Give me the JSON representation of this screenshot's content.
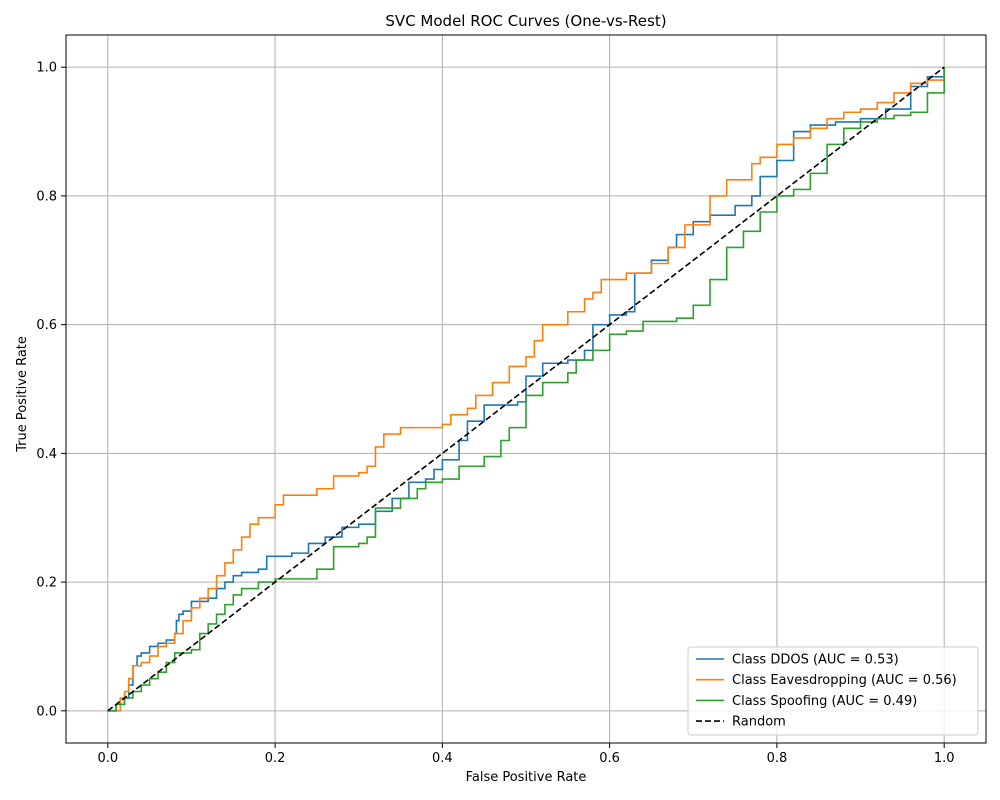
{
  "chart_data": {
    "type": "line",
    "title": "SVC Model ROC Curves (One-vs-Rest)",
    "xlabel": "False Positive Rate",
    "ylabel": "True Positive Rate",
    "xlim": [
      -0.05,
      1.05
    ],
    "ylim": [
      -0.05,
      1.05
    ],
    "xticks": [
      0.0,
      0.2,
      0.4,
      0.6,
      0.8,
      1.0
    ],
    "yticks": [
      0.0,
      0.2,
      0.4,
      0.6,
      0.8,
      1.0
    ],
    "xtick_labels": [
      "0.0",
      "0.2",
      "0.4",
      "0.6",
      "0.8",
      "1.0"
    ],
    "ytick_labels": [
      "0.0",
      "0.2",
      "0.4",
      "0.6",
      "0.8",
      "1.0"
    ],
    "grid": true,
    "legend_position": "lower-right",
    "series": [
      {
        "name": "Class DDOS (AUC = 0.53)",
        "color": "#1f77b4",
        "dash": "solid",
        "x": [
          0.0,
          0.01,
          0.02,
          0.025,
          0.03,
          0.035,
          0.04,
          0.05,
          0.06,
          0.07,
          0.08,
          0.082,
          0.085,
          0.09,
          0.1,
          0.12,
          0.13,
          0.14,
          0.15,
          0.16,
          0.18,
          0.19,
          0.22,
          0.24,
          0.26,
          0.28,
          0.3,
          0.32,
          0.34,
          0.36,
          0.38,
          0.39,
          0.4,
          0.42,
          0.43,
          0.45,
          0.49,
          0.5,
          0.52,
          0.55,
          0.57,
          0.58,
          0.6,
          0.62,
          0.63,
          0.65,
          0.67,
          0.68,
          0.7,
          0.72,
          0.75,
          0.77,
          0.78,
          0.8,
          0.82,
          0.84,
          0.87,
          0.9,
          0.93,
          0.96,
          0.98,
          1.0
        ],
        "y": [
          0.0,
          0.01,
          0.02,
          0.04,
          0.07,
          0.085,
          0.09,
          0.1,
          0.105,
          0.11,
          0.12,
          0.14,
          0.15,
          0.155,
          0.17,
          0.175,
          0.19,
          0.2,
          0.21,
          0.215,
          0.22,
          0.24,
          0.245,
          0.26,
          0.27,
          0.285,
          0.29,
          0.31,
          0.33,
          0.355,
          0.36,
          0.375,
          0.39,
          0.42,
          0.45,
          0.475,
          0.48,
          0.52,
          0.54,
          0.545,
          0.56,
          0.6,
          0.615,
          0.62,
          0.68,
          0.7,
          0.72,
          0.74,
          0.76,
          0.77,
          0.785,
          0.8,
          0.83,
          0.855,
          0.9,
          0.91,
          0.915,
          0.92,
          0.935,
          0.97,
          0.985,
          1.0
        ]
      },
      {
        "name": "Class Eavesdropping (AUC = 0.56)",
        "color": "#ff7f0e",
        "dash": "solid",
        "x": [
          0.0,
          0.01,
          0.015,
          0.02,
          0.025,
          0.03,
          0.04,
          0.05,
          0.06,
          0.07,
          0.08,
          0.09,
          0.1,
          0.11,
          0.12,
          0.13,
          0.14,
          0.15,
          0.16,
          0.17,
          0.18,
          0.2,
          0.21,
          0.25,
          0.27,
          0.3,
          0.31,
          0.32,
          0.33,
          0.35,
          0.4,
          0.41,
          0.43,
          0.44,
          0.46,
          0.48,
          0.5,
          0.51,
          0.52,
          0.55,
          0.57,
          0.58,
          0.59,
          0.62,
          0.65,
          0.67,
          0.69,
          0.72,
          0.74,
          0.77,
          0.78,
          0.8,
          0.82,
          0.84,
          0.86,
          0.88,
          0.9,
          0.92,
          0.94,
          0.96,
          0.98,
          1.0
        ],
        "y": [
          0.0,
          0.0,
          0.02,
          0.03,
          0.05,
          0.07,
          0.075,
          0.085,
          0.1,
          0.105,
          0.12,
          0.14,
          0.16,
          0.175,
          0.19,
          0.21,
          0.23,
          0.25,
          0.27,
          0.29,
          0.3,
          0.32,
          0.335,
          0.345,
          0.365,
          0.37,
          0.38,
          0.41,
          0.43,
          0.44,
          0.445,
          0.46,
          0.47,
          0.49,
          0.51,
          0.535,
          0.55,
          0.575,
          0.6,
          0.62,
          0.64,
          0.65,
          0.67,
          0.68,
          0.695,
          0.72,
          0.755,
          0.8,
          0.825,
          0.85,
          0.86,
          0.88,
          0.89,
          0.905,
          0.92,
          0.93,
          0.935,
          0.945,
          0.96,
          0.975,
          0.98,
          1.0
        ]
      },
      {
        "name": "Class Spoofing (AUC = 0.49)",
        "color": "#2ca02c",
        "dash": "solid",
        "x": [
          0.0,
          0.01,
          0.02,
          0.03,
          0.04,
          0.05,
          0.06,
          0.07,
          0.08,
          0.1,
          0.11,
          0.12,
          0.13,
          0.14,
          0.15,
          0.16,
          0.18,
          0.2,
          0.25,
          0.27,
          0.3,
          0.31,
          0.32,
          0.35,
          0.37,
          0.38,
          0.4,
          0.42,
          0.45,
          0.47,
          0.48,
          0.5,
          0.52,
          0.55,
          0.56,
          0.58,
          0.6,
          0.62,
          0.64,
          0.68,
          0.7,
          0.72,
          0.74,
          0.76,
          0.78,
          0.8,
          0.82,
          0.84,
          0.86,
          0.88,
          0.9,
          0.92,
          0.94,
          0.96,
          0.98,
          1.0
        ],
        "y": [
          0.0,
          0.01,
          0.02,
          0.03,
          0.04,
          0.05,
          0.06,
          0.075,
          0.09,
          0.095,
          0.12,
          0.135,
          0.15,
          0.165,
          0.18,
          0.19,
          0.2,
          0.205,
          0.22,
          0.255,
          0.26,
          0.27,
          0.315,
          0.33,
          0.345,
          0.355,
          0.36,
          0.38,
          0.395,
          0.42,
          0.44,
          0.49,
          0.51,
          0.525,
          0.545,
          0.56,
          0.585,
          0.59,
          0.605,
          0.61,
          0.63,
          0.67,
          0.72,
          0.745,
          0.775,
          0.8,
          0.81,
          0.835,
          0.88,
          0.905,
          0.915,
          0.92,
          0.925,
          0.93,
          0.96,
          1.0
        ]
      },
      {
        "name": "Random",
        "color": "#000000",
        "dash": "dashed",
        "x": [
          0.0,
          1.0
        ],
        "y": [
          0.0,
          1.0
        ]
      }
    ]
  }
}
